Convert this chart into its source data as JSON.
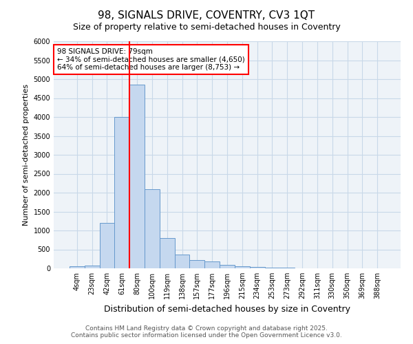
{
  "title": "98, SIGNALS DRIVE, COVENTRY, CV3 1QT",
  "subtitle": "Size of property relative to semi-detached houses in Coventry",
  "xlabel": "Distribution of semi-detached houses by size in Coventry",
  "ylabel": "Number of semi-detached properties",
  "bar_labels": [
    "4sqm",
    "23sqm",
    "42sqm",
    "61sqm",
    "80sqm",
    "100sqm",
    "119sqm",
    "138sqm",
    "157sqm",
    "177sqm",
    "196sqm",
    "215sqm",
    "234sqm",
    "253sqm",
    "273sqm",
    "292sqm",
    "311sqm",
    "330sqm",
    "350sqm",
    "369sqm",
    "388sqm"
  ],
  "bar_values": [
    60,
    70,
    1200,
    4000,
    4860,
    2100,
    800,
    370,
    210,
    180,
    100,
    55,
    30,
    20,
    10,
    5,
    3,
    2,
    2,
    1,
    1
  ],
  "bar_color": "#c5d8ef",
  "bar_edgecolor": "#6699cc",
  "ylim": [
    0,
    6000
  ],
  "annotation_title": "98 SIGNALS DRIVE: 79sqm",
  "annotation_line1": "← 34% of semi-detached houses are smaller (4,650)",
  "annotation_line2": "64% of semi-detached houses are larger (8,753) →",
  "grid_color": "#c8d8e8",
  "background_color": "#eef3f8",
  "footer1": "Contains HM Land Registry data © Crown copyright and database right 2025.",
  "footer2": "Contains public sector information licensed under the Open Government Licence v3.0.",
  "property_bar_index": 4,
  "yticks": [
    0,
    500,
    1000,
    1500,
    2000,
    2500,
    3000,
    3500,
    4000,
    4500,
    5000,
    5500,
    6000
  ],
  "title_fontsize": 11,
  "subtitle_fontsize": 9,
  "xlabel_fontsize": 9,
  "ylabel_fontsize": 8,
  "tick_fontsize": 7,
  "annotation_fontsize": 7.5,
  "footer_fontsize": 6.5
}
